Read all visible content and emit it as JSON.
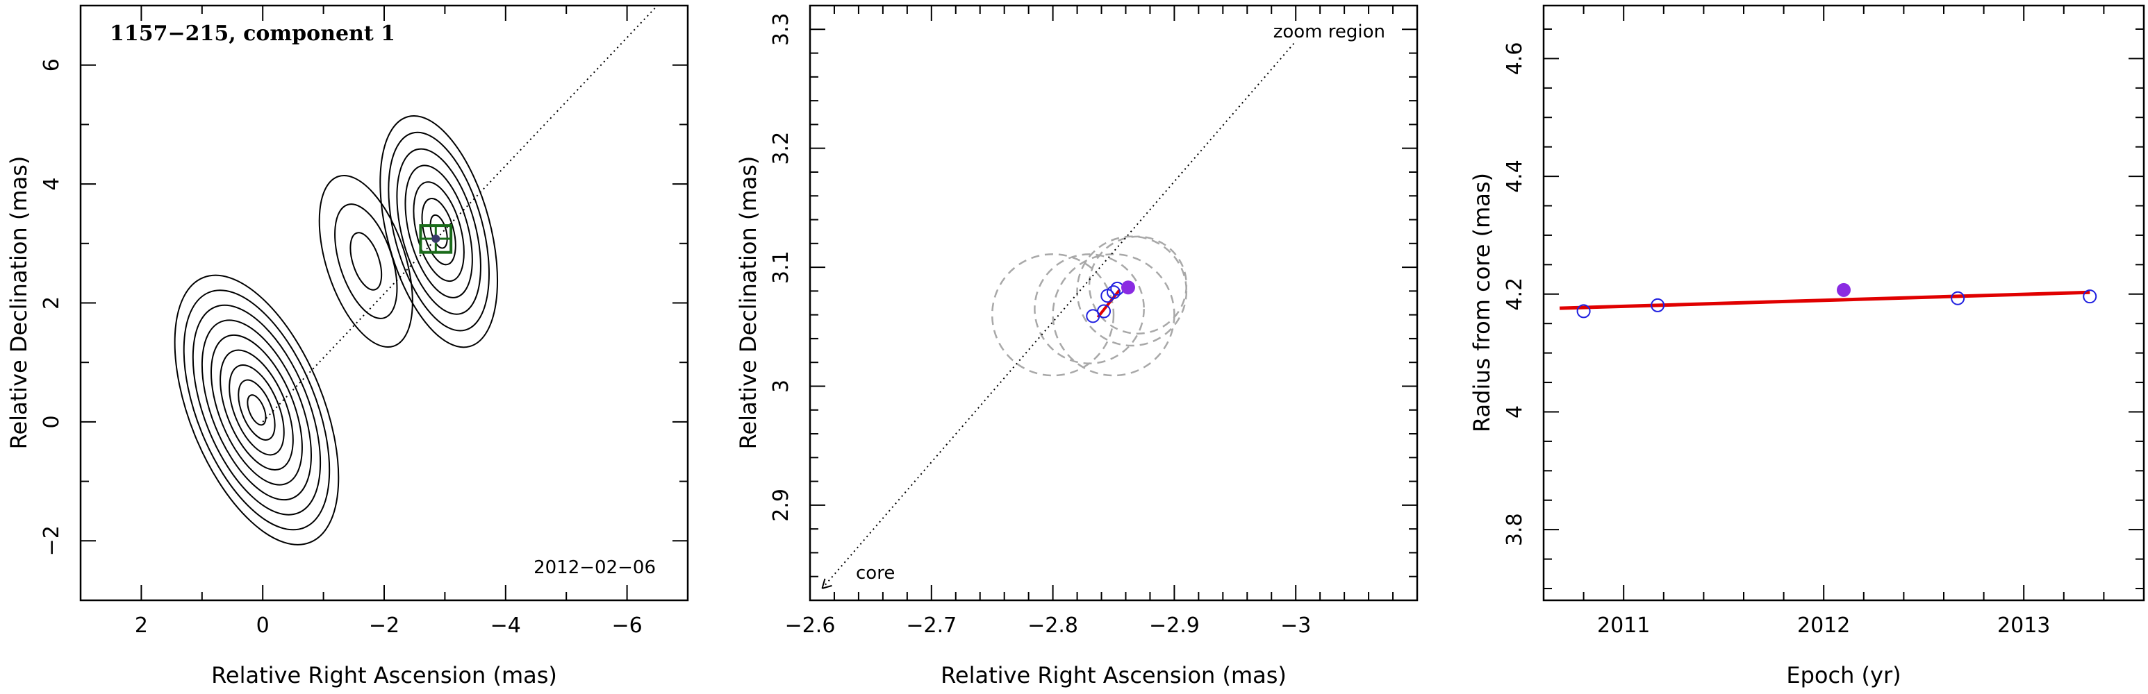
{
  "chart_data": [
    {
      "type": "contour",
      "title": "1157−215, component 1",
      "annotation": "2012−02−06",
      "xlabel": "Relative Right Ascension (mas)",
      "ylabel": "Relative Declination (mas)",
      "xlim": [
        3,
        -7
      ],
      "ylim": [
        -3,
        7
      ],
      "xticks": [
        {
          "v": 2,
          "t": "2"
        },
        {
          "v": 0,
          "t": "0"
        },
        {
          "v": -2,
          "t": "−2"
        },
        {
          "v": -4,
          "t": "−4"
        },
        {
          "v": -6,
          "t": "−6"
        }
      ],
      "yticks": [
        {
          "v": -2,
          "t": "−2"
        },
        {
          "v": 0,
          "t": "0"
        },
        {
          "v": 2,
          "t": "2"
        },
        {
          "v": 4,
          "t": "4"
        },
        {
          "v": 6,
          "t": "6"
        }
      ],
      "components": [
        {
          "cx": 0.1,
          "cy": 0.2,
          "rx": 1.1,
          "ry": 2.4,
          "angle": -22,
          "levels": 9
        },
        {
          "cx": -1.7,
          "cy": 2.7,
          "rx": 0.65,
          "ry": 1.5,
          "angle": -18,
          "levels": 3
        },
        {
          "cx": -2.9,
          "cy": 3.2,
          "rx": 0.85,
          "ry": 2.0,
          "angle": -15,
          "levels": 7
        }
      ],
      "jet_line": {
        "from": [
          0,
          0
        ],
        "to": [
          -6.5,
          7
        ]
      },
      "marker": {
        "x": -2.85,
        "y": 3.08,
        "box": [
          -2.6,
          -3.1,
          2.85,
          3.3
        ]
      }
    },
    {
      "type": "scatter",
      "annotation_zoom": "zoom region",
      "annotation_core": "core",
      "xlabel": "Relative Right Ascension (mas)",
      "ylabel": "Relative Declination (mas)",
      "xlim": [
        -2.6,
        -3.1
      ],
      "ylim": [
        2.82,
        3.32
      ],
      "xticks": [
        {
          "v": -2.6,
          "t": "−2.6"
        },
        {
          "v": -2.7,
          "t": "−2.7"
        },
        {
          "v": -2.8,
          "t": "−2.8"
        },
        {
          "v": -2.9,
          "t": "−2.9"
        },
        {
          "v": -3.0,
          "t": "−3"
        }
      ],
      "yticks": [
        {
          "v": 2.9,
          "t": "2.9"
        },
        {
          "v": 3.0,
          "t": "3"
        },
        {
          "v": 3.1,
          "t": "3.1"
        },
        {
          "v": 3.2,
          "t": "3.2"
        },
        {
          "v": 3.3,
          "t": "3.3"
        }
      ],
      "points": [
        {
          "x": -2.833,
          "y": 3.059
        },
        {
          "x": -2.842,
          "y": 3.063
        },
        {
          "x": -2.845,
          "y": 3.076
        },
        {
          "x": -2.85,
          "y": 3.079
        },
        {
          "x": -2.853,
          "y": 3.082
        }
      ],
      "highlight": {
        "x": -2.862,
        "y": 3.083
      },
      "fit_line": {
        "from": [
          -2.837,
          3.058
        ],
        "to": [
          -2.855,
          3.081
        ]
      },
      "circles": [
        {
          "x": -2.8,
          "y": 3.06,
          "r": 0.05
        },
        {
          "x": -2.83,
          "y": 3.065,
          "r": 0.045
        },
        {
          "x": -2.85,
          "y": 3.06,
          "r": 0.05
        },
        {
          "x": -2.865,
          "y": 3.08,
          "r": 0.045
        },
        {
          "x": -2.87,
          "y": 3.085,
          "r": 0.04
        }
      ],
      "jet_line": {
        "from": [
          -2.61,
          2.83
        ],
        "to": [
          -3.0,
          3.29
        ]
      }
    },
    {
      "type": "scatter",
      "xlabel": "Epoch (yr)",
      "ylabel": "Radius from core (mas)",
      "xlim": [
        2010.6,
        2013.6
      ],
      "ylim": [
        3.68,
        4.69
      ],
      "xticks": [
        {
          "v": 2011,
          "t": "2011"
        },
        {
          "v": 2012,
          "t": "2012"
        },
        {
          "v": 2013,
          "t": "2013"
        }
      ],
      "yticks": [
        {
          "v": 3.8,
          "t": "3.8"
        },
        {
          "v": 4.0,
          "t": "4"
        },
        {
          "v": 4.2,
          "t": "4.2"
        },
        {
          "v": 4.4,
          "t": "4.4"
        },
        {
          "v": 4.6,
          "t": "4.6"
        }
      ],
      "points": [
        {
          "x": 2010.8,
          "y": 4.171
        },
        {
          "x": 2011.17,
          "y": 4.181
        },
        {
          "x": 2012.67,
          "y": 4.193
        },
        {
          "x": 2013.33,
          "y": 4.196
        }
      ],
      "highlight": {
        "x": 2012.1,
        "y": 4.207
      },
      "fit_line": {
        "from": [
          2010.68,
          4.176
        ],
        "to": [
          2013.33,
          4.203
        ]
      }
    }
  ]
}
